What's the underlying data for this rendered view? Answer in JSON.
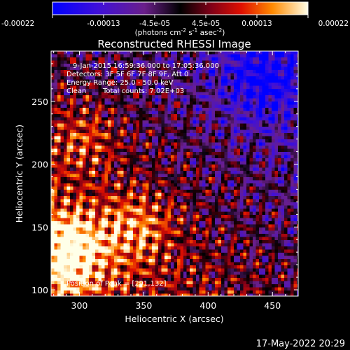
{
  "chart_data": {
    "type": "heatmap",
    "title": "Reconstructed RHESSI Image",
    "xlabel": "Heliocentric X (arcsec)",
    "ylabel": "Heliocentric Y (arcsec)",
    "xlim": [
      278,
      470
    ],
    "ylim": [
      95,
      290
    ],
    "x_ticks": [
      300,
      350,
      400,
      450
    ],
    "y_ticks": [
      100,
      150,
      200,
      250
    ],
    "colorbar": {
      "ticks": [
        "-0.00022",
        "-0.00013",
        "-4.5e-05",
        "4.5e-05",
        "0.00013",
        "0.00022"
      ],
      "unit_prefix": "(photons cm",
      "unit_exp1": "-2",
      "unit_mid": " s",
      "unit_exp2": "-1",
      "unit_mid2": " asec",
      "unit_exp3": "-2",
      "unit_suffix": ")",
      "range": [
        -0.00022,
        0.00022
      ]
    },
    "annotations": [
      "9-Jan-2015 16:59:36.000 to 17:05:36.000",
      "Detectors: 3F 5F 6F 7F 8F 9F, Att 0",
      "Energy Range: 25.0 - 50.0 keV",
      "Clean",
      "Total counts: 7.02E+03"
    ],
    "peak_label": "Position of Peak = [291,132]",
    "peak": [
      291,
      132
    ],
    "grid": false
  },
  "footer": {
    "date": "17-May-2022 20:29"
  }
}
